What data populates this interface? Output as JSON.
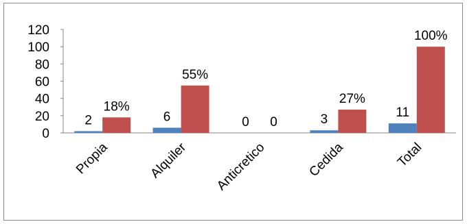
{
  "chart_data": {
    "type": "bar",
    "categories": [
      "Propia",
      "Alquiler",
      "Anticretico",
      "Cedida",
      "Total"
    ],
    "series": [
      {
        "values": [
          2,
          6,
          0,
          3,
          11
        ],
        "labels": [
          "2",
          "6",
          "0",
          "3",
          "11"
        ],
        "color": "#4f81bd"
      },
      {
        "values": [
          18,
          55,
          0,
          27,
          100
        ],
        "labels": [
          "18%",
          "55%",
          "0",
          "27%",
          "100%"
        ],
        "color": "#c0504d"
      }
    ],
    "ylim": [
      0,
      120
    ],
    "yticks": [
      "0",
      "20",
      "40",
      "60",
      "80",
      "100",
      "120"
    ],
    "grid": false,
    "legend": "none",
    "title": "",
    "xlabel": "",
    "ylabel": ""
  }
}
